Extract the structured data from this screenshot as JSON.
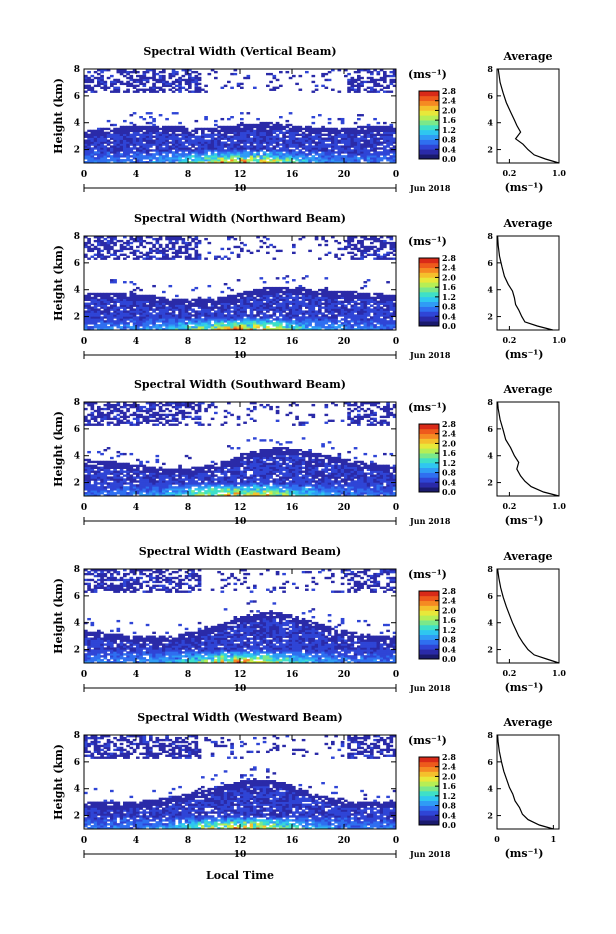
{
  "chart_data": {
    "type": "heatmap",
    "month_label": "Jun 2018",
    "date_label": "10",
    "xlabel": "Local Time",
    "ylabel": "Height (km)",
    "x_ticks": [
      "0",
      "4",
      "8",
      "12",
      "16",
      "20",
      "0"
    ],
    "y_ticks": [
      "2",
      "4",
      "6",
      "8"
    ],
    "ylim": [
      1,
      8
    ],
    "xlim": [
      0,
      24
    ],
    "colorbar": {
      "unit": "(ms⁻¹)",
      "ticks": [
        "0.0",
        "0.4",
        "0.8",
        "1.2",
        "1.6",
        "2.0",
        "2.4",
        "2.8"
      ],
      "range": [
        0,
        2.8
      ],
      "colors": [
        "#1a1a6e",
        "#2a2aa8",
        "#2f45d6",
        "#2f6ff0",
        "#2f9cf5",
        "#2fc7f0",
        "#3ee0c8",
        "#7ae88a",
        "#b6ee55",
        "#e8e83a",
        "#f5c02c",
        "#f58a22",
        "#ee5a1c",
        "#d92a18"
      ]
    },
    "average_panel": {
      "title": "Average",
      "xlabel": "(ms⁻¹)",
      "y_ticks": [
        "2",
        "4",
        "6",
        "8"
      ]
    },
    "panels": [
      {
        "title": "Spectral Width (Vertical Beam)",
        "avg_x_ticks": [
          "0.2",
          "1.0"
        ],
        "avg_xlim": [
          0,
          1.0
        ],
        "profile": [
          [
            1.0,
            1.0
          ],
          [
            0.78,
            1.3
          ],
          [
            0.6,
            1.6
          ],
          [
            0.5,
            2.0
          ],
          [
            0.42,
            2.4
          ],
          [
            0.3,
            2.8
          ],
          [
            0.38,
            3.3
          ],
          [
            0.32,
            3.8
          ],
          [
            0.28,
            4.2
          ],
          [
            0.22,
            4.8
          ],
          [
            0.15,
            5.5
          ],
          [
            0.1,
            6.2
          ],
          [
            0.05,
            7.0
          ],
          [
            0.02,
            8.0
          ]
        ]
      },
      {
        "title": "Spectral Width (Northward Beam)",
        "avg_x_ticks": [
          "0.2",
          "1.0"
        ],
        "avg_xlim": [
          0,
          1.0
        ],
        "profile": [
          [
            0.9,
            1.0
          ],
          [
            0.65,
            1.3
          ],
          [
            0.45,
            1.6
          ],
          [
            0.4,
            2.0
          ],
          [
            0.35,
            2.5
          ],
          [
            0.3,
            2.9
          ],
          [
            0.28,
            3.4
          ],
          [
            0.25,
            3.9
          ],
          [
            0.18,
            4.4
          ],
          [
            0.12,
            5.0
          ],
          [
            0.08,
            5.7
          ],
          [
            0.04,
            6.5
          ],
          [
            0.02,
            7.3
          ],
          [
            0.01,
            8.0
          ]
        ]
      },
      {
        "title": "Spectral Width (Southward Beam)",
        "avg_x_ticks": [
          "0.2",
          "1.0"
        ],
        "avg_xlim": [
          0,
          1.0
        ],
        "profile": [
          [
            1.0,
            1.0
          ],
          [
            0.75,
            1.3
          ],
          [
            0.55,
            1.7
          ],
          [
            0.45,
            2.1
          ],
          [
            0.38,
            2.5
          ],
          [
            0.32,
            3.0
          ],
          [
            0.35,
            3.5
          ],
          [
            0.28,
            4.0
          ],
          [
            0.22,
            4.6
          ],
          [
            0.14,
            5.2
          ],
          [
            0.1,
            5.9
          ],
          [
            0.05,
            6.7
          ],
          [
            0.02,
            7.5
          ],
          [
            0.01,
            8.0
          ]
        ]
      },
      {
        "title": "Spectral Width (Eastward Beam)",
        "avg_x_ticks": [
          "0.2",
          "1.0"
        ],
        "avg_xlim": [
          0,
          1.0
        ],
        "profile": [
          [
            1.0,
            1.0
          ],
          [
            0.8,
            1.3
          ],
          [
            0.6,
            1.6
          ],
          [
            0.5,
            2.0
          ],
          [
            0.42,
            2.5
          ],
          [
            0.35,
            3.0
          ],
          [
            0.3,
            3.5
          ],
          [
            0.25,
            4.0
          ],
          [
            0.2,
            4.6
          ],
          [
            0.15,
            5.2
          ],
          [
            0.1,
            5.9
          ],
          [
            0.06,
            6.6
          ],
          [
            0.03,
            7.3
          ],
          [
            0.01,
            8.0
          ]
        ]
      },
      {
        "title": "Spectral Width (Westward Beam)",
        "avg_x_ticks": [
          "0",
          "1"
        ],
        "avg_xlim": [
          0,
          1.1
        ],
        "profile": [
          [
            1.0,
            1.0
          ],
          [
            0.75,
            1.3
          ],
          [
            0.55,
            1.7
          ],
          [
            0.45,
            2.1
          ],
          [
            0.4,
            2.6
          ],
          [
            0.32,
            3.1
          ],
          [
            0.28,
            3.6
          ],
          [
            0.22,
            4.1
          ],
          [
            0.17,
            4.7
          ],
          [
            0.12,
            5.3
          ],
          [
            0.08,
            6.0
          ],
          [
            0.04,
            6.8
          ],
          [
            0.02,
            7.5
          ],
          [
            0.01,
            8.0
          ]
        ]
      }
    ]
  }
}
